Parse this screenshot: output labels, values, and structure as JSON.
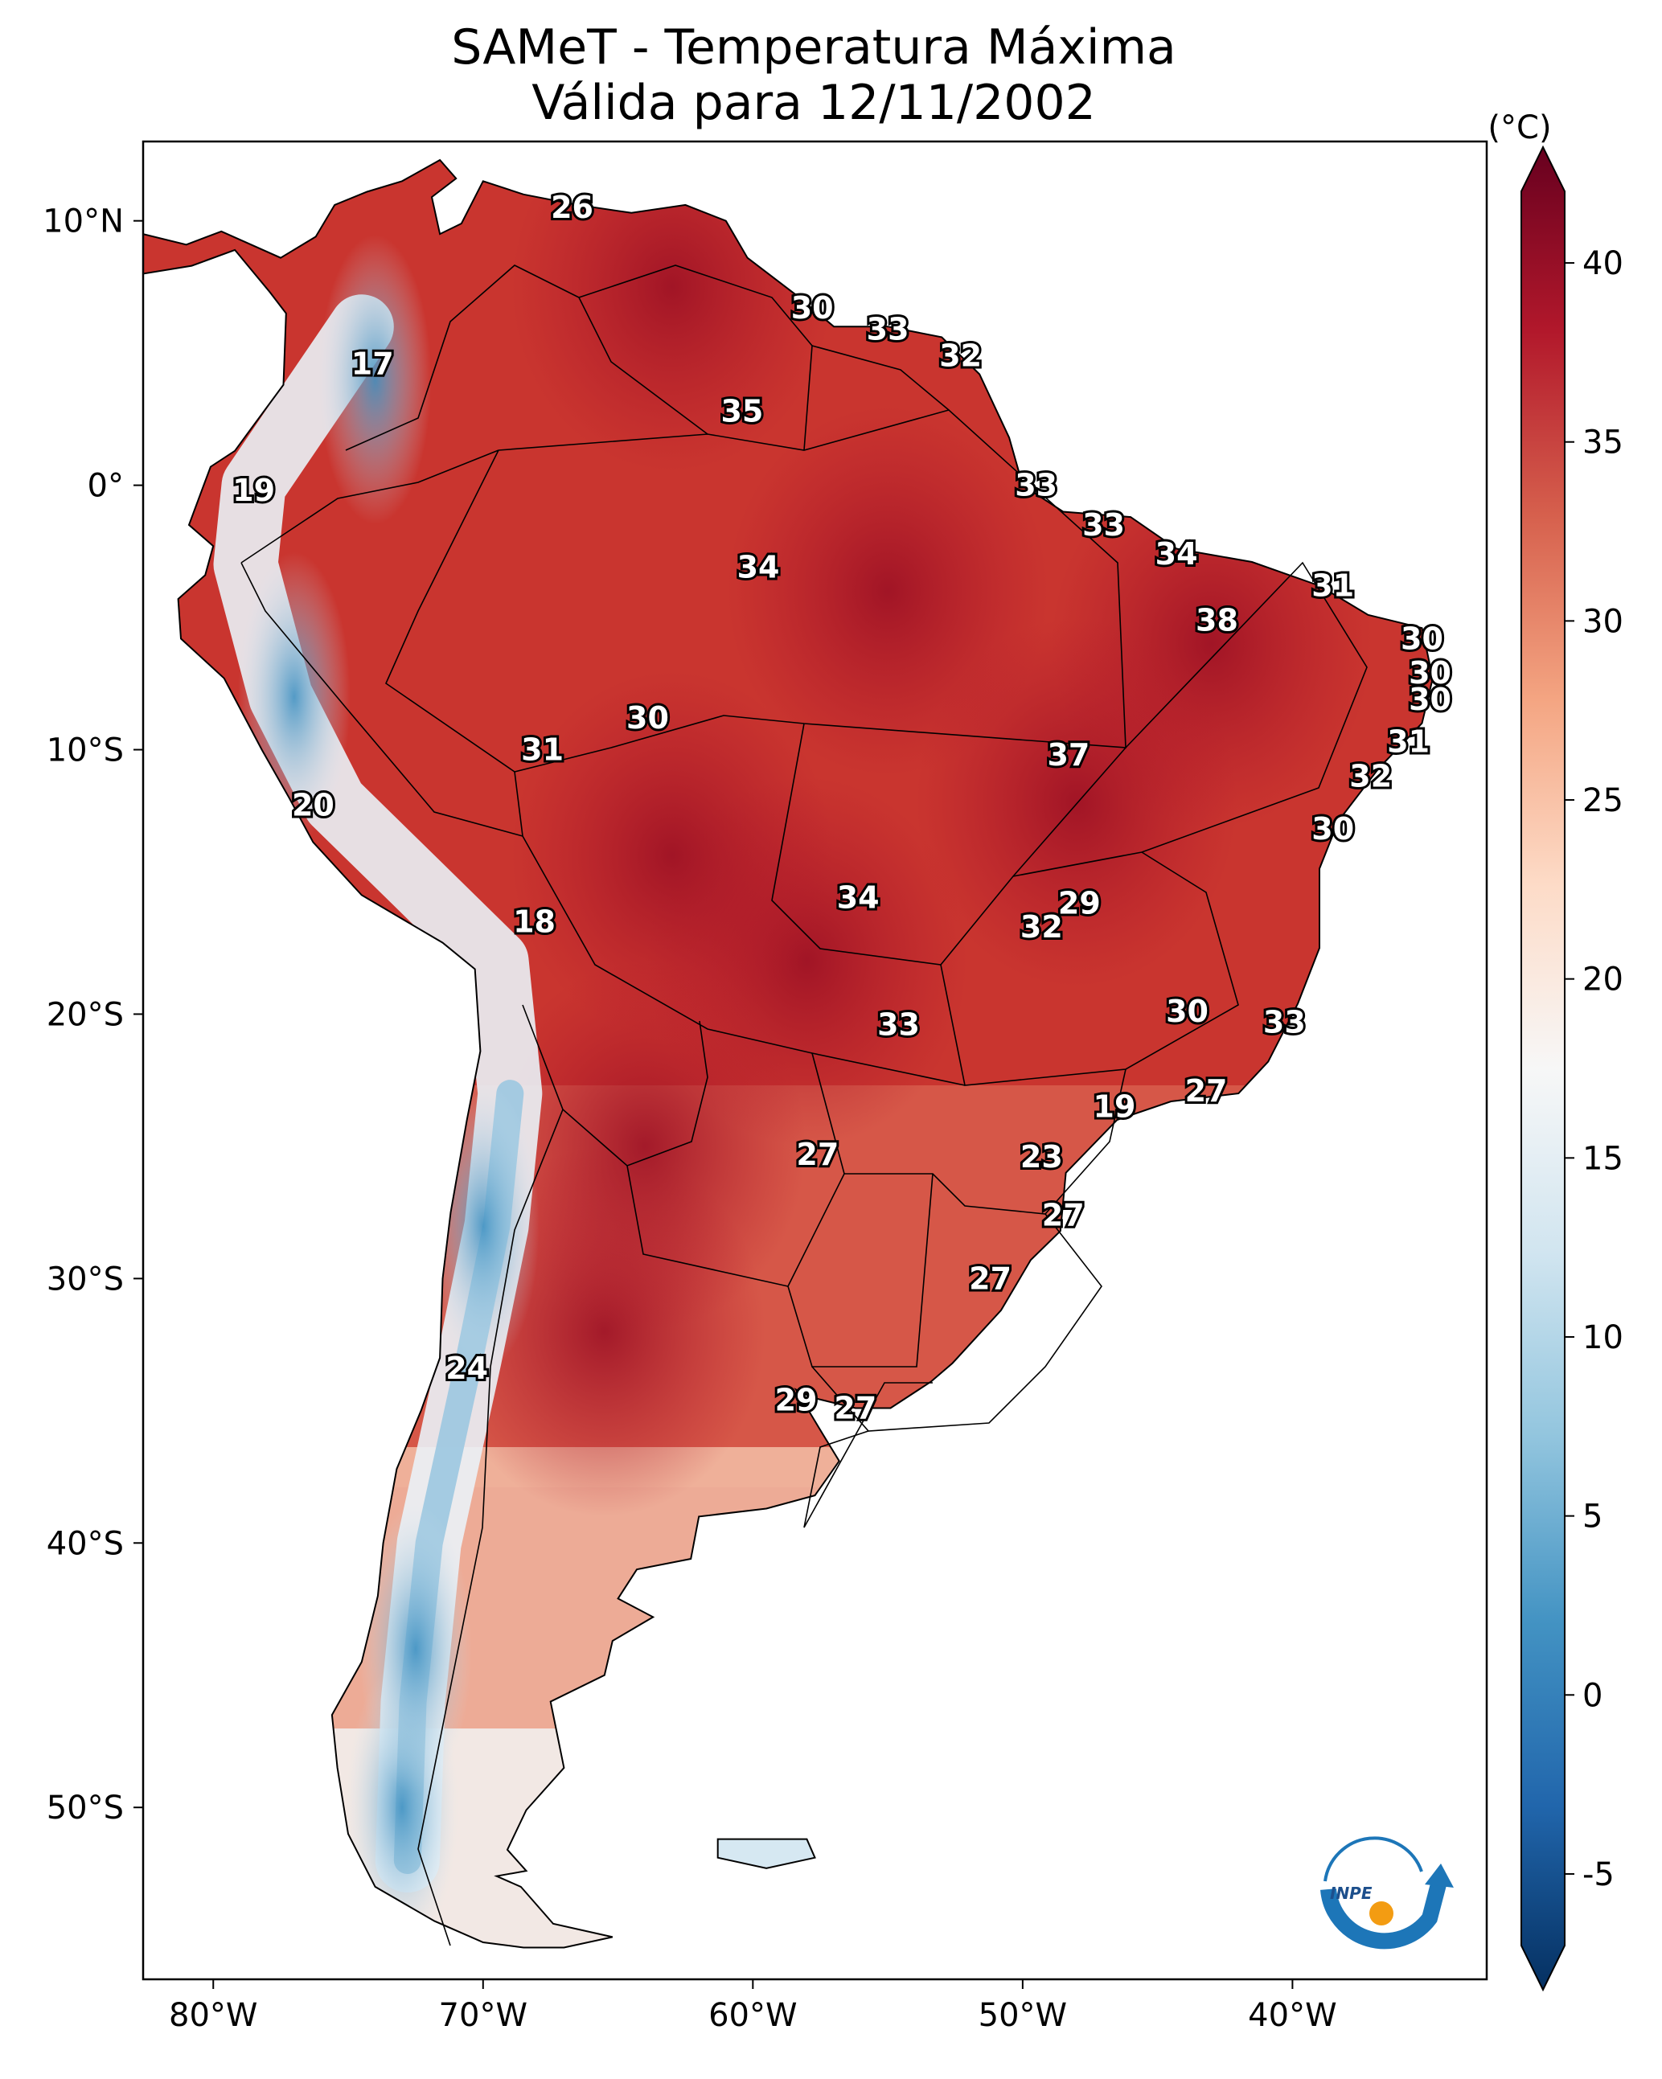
{
  "title": {
    "line1": "SAMeT - Temperatura Máxima",
    "line2": "Válida para 12/11/2002"
  },
  "colorbar": {
    "unit": "(°C)",
    "min": -7,
    "max": 42,
    "ticks": [
      -5,
      0,
      5,
      10,
      15,
      20,
      25,
      30,
      35,
      40
    ],
    "tick_labels": [
      "-5",
      "0",
      "5",
      "10",
      "15",
      "20",
      "25",
      "30",
      "35",
      "40"
    ],
    "colors": [
      "#053061",
      "#2166ac",
      "#4393c3",
      "#92c5de",
      "#d1e5f0",
      "#f7f7f7",
      "#fddbc7",
      "#f4a582",
      "#d6604d",
      "#b2182b",
      "#67001f"
    ]
  },
  "axes": {
    "lon_labels": [
      "80°W",
      "70°W",
      "60°W",
      "50°W",
      "40°W"
    ],
    "lon_values": [
      -80,
      -70,
      -60,
      -50,
      -40
    ],
    "lat_labels": [
      "10°N",
      "0°",
      "10°S",
      "20°S",
      "30°S",
      "40°S",
      "50°S"
    ],
    "lat_values": [
      10,
      0,
      -10,
      -20,
      -30,
      -40,
      -50
    ],
    "lon_range": [
      -82.6,
      -32.8
    ],
    "lat_range": [
      -56.5,
      13.0
    ]
  },
  "station_labels": [
    {
      "lon": -66.7,
      "lat": 10.5,
      "text": "26"
    },
    {
      "lon": -57.8,
      "lat": 6.7,
      "text": "30"
    },
    {
      "lon": -55.0,
      "lat": 5.9,
      "text": "33"
    },
    {
      "lon": -52.3,
      "lat": 4.9,
      "text": "32"
    },
    {
      "lon": -74.1,
      "lat": 4.6,
      "text": "17"
    },
    {
      "lon": -60.4,
      "lat": 2.8,
      "text": "35"
    },
    {
      "lon": -49.5,
      "lat": 0.0,
      "text": "33"
    },
    {
      "lon": -78.5,
      "lat": -0.2,
      "text": "19"
    },
    {
      "lon": -47.0,
      "lat": -1.5,
      "text": "33"
    },
    {
      "lon": -44.3,
      "lat": -2.6,
      "text": "34"
    },
    {
      "lon": -59.8,
      "lat": -3.1,
      "text": "34"
    },
    {
      "lon": -38.5,
      "lat": -3.8,
      "text": "31"
    },
    {
      "lon": -42.8,
      "lat": -5.1,
      "text": "38"
    },
    {
      "lon": -35.2,
      "lat": -5.8,
      "text": "30"
    },
    {
      "lon": -34.9,
      "lat": -7.1,
      "text": "30"
    },
    {
      "lon": -34.9,
      "lat": -8.1,
      "text": "30"
    },
    {
      "lon": -63.9,
      "lat": -8.8,
      "text": "30"
    },
    {
      "lon": -35.7,
      "lat": -9.7,
      "text": "31"
    },
    {
      "lon": -67.8,
      "lat": -10.0,
      "text": "31"
    },
    {
      "lon": -48.3,
      "lat": -10.2,
      "text": "37"
    },
    {
      "lon": -37.1,
      "lat": -11.0,
      "text": "32"
    },
    {
      "lon": -76.3,
      "lat": -12.1,
      "text": "20"
    },
    {
      "lon": -38.5,
      "lat": -13.0,
      "text": "30"
    },
    {
      "lon": -56.1,
      "lat": -15.6,
      "text": "34"
    },
    {
      "lon": -47.9,
      "lat": -15.8,
      "text": "29"
    },
    {
      "lon": -49.3,
      "lat": -16.7,
      "text": "32"
    },
    {
      "lon": -68.1,
      "lat": -16.5,
      "text": "18"
    },
    {
      "lon": -43.9,
      "lat": -19.9,
      "text": "30"
    },
    {
      "lon": -40.3,
      "lat": -20.3,
      "text": "33"
    },
    {
      "lon": -54.6,
      "lat": -20.4,
      "text": "33"
    },
    {
      "lon": -43.2,
      "lat": -22.9,
      "text": "27"
    },
    {
      "lon": -46.6,
      "lat": -23.5,
      "text": "19"
    },
    {
      "lon": -57.6,
      "lat": -25.3,
      "text": "27"
    },
    {
      "lon": -49.3,
      "lat": -25.4,
      "text": "23"
    },
    {
      "lon": -48.5,
      "lat": -27.6,
      "text": "27"
    },
    {
      "lon": -51.2,
      "lat": -30.0,
      "text": "27"
    },
    {
      "lon": -70.6,
      "lat": -33.4,
      "text": "24"
    },
    {
      "lon": -58.4,
      "lat": -34.6,
      "text": "29"
    },
    {
      "lon": -56.2,
      "lat": -34.9,
      "text": "27"
    }
  ],
  "heat_zones": [
    {
      "lon": -55.0,
      "lat": -4.0,
      "value": 35
    },
    {
      "lon": -63.0,
      "lat": 7.5,
      "value": 35
    },
    {
      "lon": -43.0,
      "lat": -6.0,
      "value": 37
    },
    {
      "lon": -48.0,
      "lat": -12.0,
      "value": 36
    },
    {
      "lon": -65.5,
      "lat": -32.0,
      "value": 38
    },
    {
      "lon": -64.0,
      "lat": -25.0,
      "value": 34
    },
    {
      "lon": -58.0,
      "lat": -18.0,
      "value": 34
    },
    {
      "lon": -63.0,
      "lat": -14.0,
      "value": 34
    }
  ],
  "cold_zones": [
    {
      "lon": -73.0,
      "lat": -50.0,
      "value": 5
    },
    {
      "lon": -72.5,
      "lat": -44.0,
      "value": 10
    },
    {
      "lon": -70.0,
      "lat": -28.0,
      "value": 8
    },
    {
      "lon": -77.0,
      "lat": -8.0,
      "value": 12
    },
    {
      "lon": -74.0,
      "lat": 4.0,
      "value": 16
    }
  ],
  "logo": {
    "text": "INPE"
  }
}
